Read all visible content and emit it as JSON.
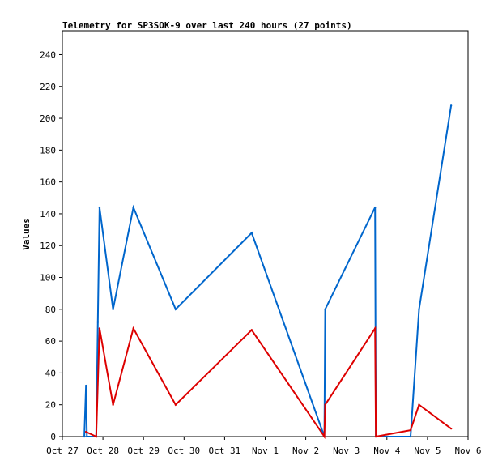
{
  "chart_data": {
    "type": "line",
    "title": "Telemetry for SP3SOK-9 over last 240 hours (27 points)",
    "xlabel": "",
    "ylabel": "Values",
    "ylim": [
      0,
      255
    ],
    "xlim": [
      "Oct 27 00:00",
      "Nov 6 00:00"
    ],
    "yticks": [
      0,
      20,
      40,
      60,
      80,
      100,
      120,
      140,
      160,
      180,
      200,
      220,
      240
    ],
    "xticks": [
      "Oct 27",
      "Oct 28",
      "Oct 29",
      "Oct 30",
      "Oct 31",
      "Nov 1",
      "Nov 2",
      "Nov 3",
      "Nov 4",
      "Nov 5",
      "Nov 6"
    ],
    "grid": false,
    "legend": "none",
    "series": [
      {
        "color": "#0066cc",
        "points": [
          [
            "Oct 27 13:00",
            0
          ],
          [
            "Oct 27 14:00",
            32
          ],
          [
            "Oct 27 14:30",
            0
          ],
          [
            "Oct 27 20:00",
            0
          ],
          [
            "Oct 27 21:00",
            72
          ],
          [
            "Oct 27 22:00",
            144
          ],
          [
            "Oct 28 06:00",
            80
          ],
          [
            "Oct 28 18:00",
            144
          ],
          [
            "Oct 29 19:00",
            80
          ],
          [
            "Oct 31 16:00",
            128
          ],
          [
            "Nov 2 11:00",
            0
          ],
          [
            "Nov 2 11:30",
            80
          ],
          [
            "Nov 3 17:00",
            144
          ],
          [
            "Nov 3 17:30",
            0
          ],
          [
            "Nov 4 14:00",
            0
          ],
          [
            "Nov 4 19:00",
            80
          ],
          [
            "Nov 5 14:00",
            208
          ]
        ]
      },
      {
        "color": "#dd0000",
        "points": [
          [
            "Oct 27 14:00",
            3
          ],
          [
            "Oct 27 20:00",
            0
          ],
          [
            "Oct 27 22:00",
            68
          ],
          [
            "Oct 28 06:00",
            20
          ],
          [
            "Oct 28 18:00",
            68
          ],
          [
            "Oct 29 19:00",
            20
          ],
          [
            "Oct 31 16:00",
            67
          ],
          [
            "Nov 2 11:00",
            0
          ],
          [
            "Nov 2 11:30",
            20
          ],
          [
            "Nov 3 17:00",
            68
          ],
          [
            "Nov 3 17:30",
            0
          ],
          [
            "Nov 4 14:00",
            4
          ],
          [
            "Nov 4 19:00",
            20
          ],
          [
            "Nov 5 14:00",
            5
          ]
        ]
      }
    ]
  }
}
